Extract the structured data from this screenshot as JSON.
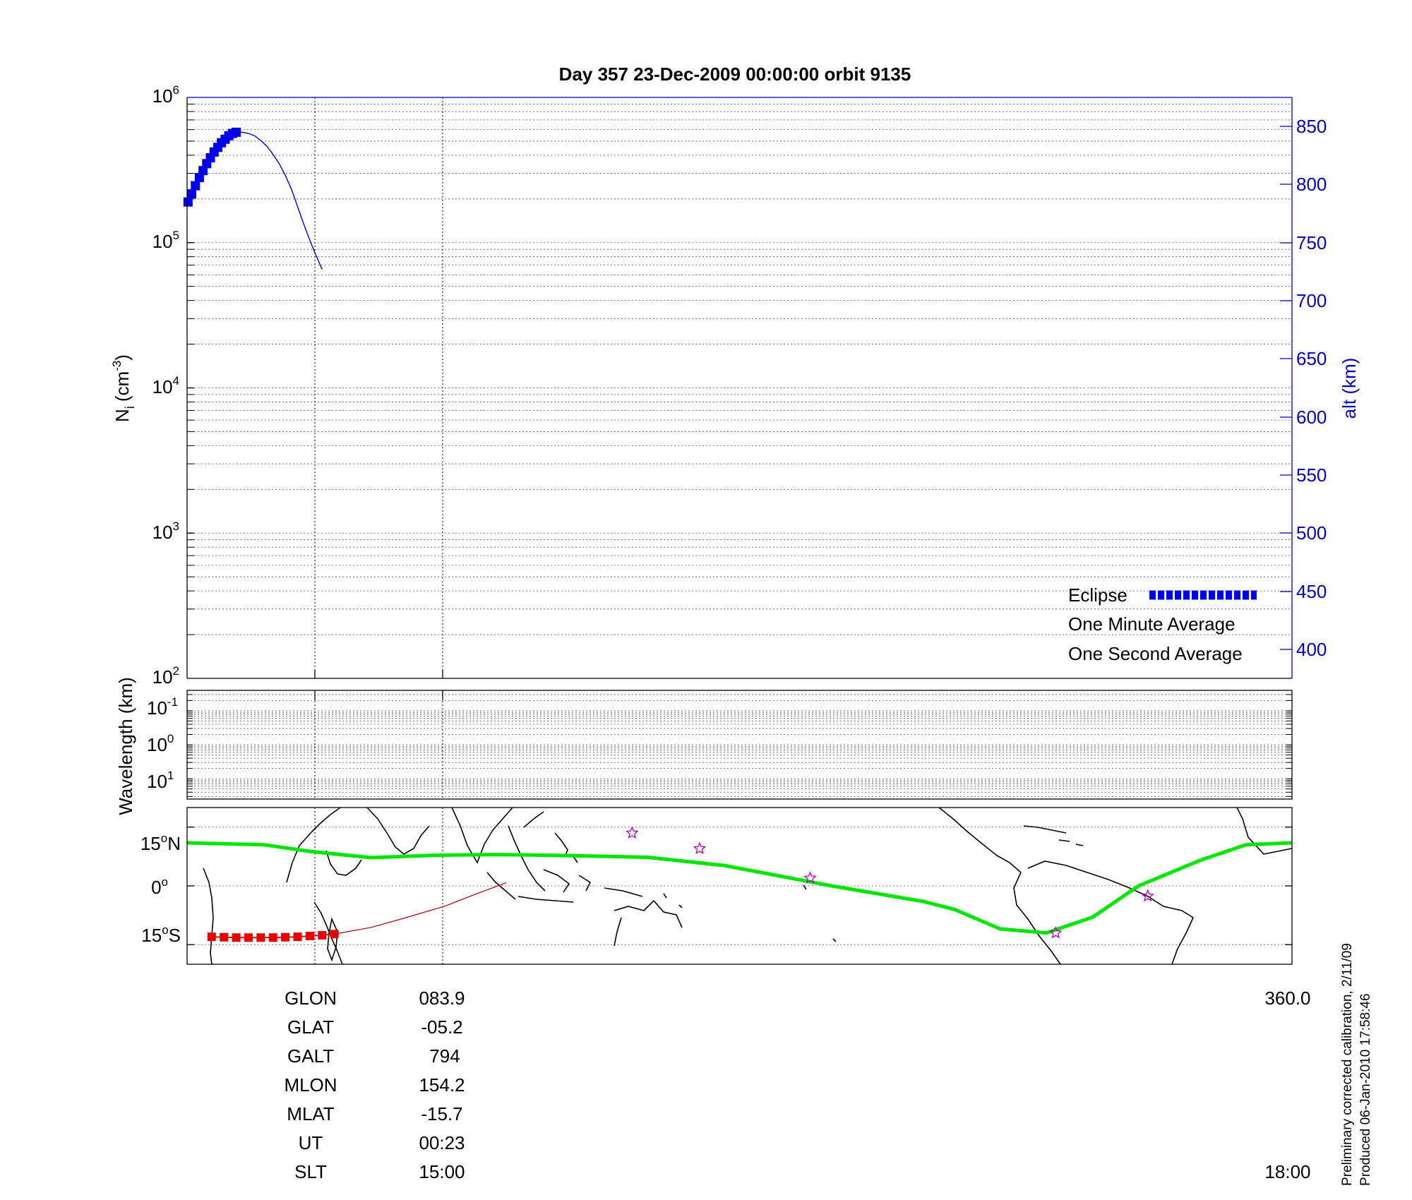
{
  "title": "Day 357  23-Dec-2009 00:00:00   orbit 9135",
  "chart_data": [
    {
      "panel": "density",
      "type": "line",
      "ylabel_base": "N",
      "ylabel_sub": "i",
      "ylabel_unit": "(cm",
      "ylabel_exp": "-3",
      "ylabel_close": ")",
      "y_scale": "log",
      "ylim": [
        100,
        1000000
      ],
      "y_ticks": [
        {
          "base": "10",
          "exp": "2",
          "value": 100
        },
        {
          "base": "10",
          "exp": "3",
          "value": 1000
        },
        {
          "base": "10",
          "exp": "4",
          "value": 10000
        },
        {
          "base": "10",
          "exp": "5",
          "value": 100000
        },
        {
          "base": "10",
          "exp": "6",
          "value": 1000000
        }
      ],
      "y2label": "alt (km)",
      "y2lim": [
        375,
        875
      ],
      "y2_ticks": [
        "400",
        "450",
        "500",
        "550",
        "600",
        "650",
        "700",
        "750",
        "800",
        "850"
      ],
      "grid": true,
      "legend_position": "bottom-right",
      "legend": [
        {
          "label": "Eclipse",
          "color": "#0000e6"
        },
        {
          "label": "One Minute Average",
          "color": "#000000"
        },
        {
          "label": "One Second Average",
          "color": "#00e600"
        }
      ],
      "series": [
        {
          "name": "Eclipse",
          "color": "#0000e6",
          "axis": "alt",
          "marker": "square",
          "x": [
            0.3,
            1.5,
            2.7,
            4.0,
            5.2,
            6.4,
            7.6,
            8.8,
            10.0,
            11.2,
            12.4,
            13.6,
            14.8,
            16.0
          ],
          "y": [
            785,
            792,
            799,
            806,
            812,
            818,
            823,
            828,
            832,
            836,
            839,
            842,
            844,
            845
          ]
        },
        {
          "name": "alt",
          "color": "#0000c8",
          "axis": "alt",
          "marker": "none",
          "x": [
            16.0,
            18.0,
            20.0,
            22.0,
            24.0,
            26.0,
            28.0,
            30.0,
            32.0,
            34.0,
            36.0,
            38.0,
            40.0,
            42.0,
            44.0
          ],
          "y": [
            845,
            845,
            844,
            842,
            838,
            833,
            826,
            818,
            808,
            796,
            781,
            766,
            752,
            739,
            727
          ]
        }
      ]
    },
    {
      "panel": "wavelength",
      "type": "heatmap",
      "ylabel": "Wavelength (km)",
      "y_scale": "log",
      "y_ticks": [
        {
          "base": "10",
          "exp": "-1"
        },
        {
          "base": "10",
          "exp": "0"
        },
        {
          "base": "10",
          "exp": "1"
        }
      ],
      "grid": true
    },
    {
      "panel": "map",
      "type": "line",
      "ylim": [
        -20,
        20
      ],
      "y_ticks": [
        {
          "value": 15,
          "text": "15",
          "deg": "o",
          "hemi": "N"
        },
        {
          "value": 0,
          "text": "0",
          "deg": "o",
          "hemi": ""
        },
        {
          "value": -15,
          "text": "15",
          "deg": "o",
          "hemi": "S"
        }
      ],
      "series": [
        {
          "name": "magnetic equator",
          "color": "#00e600",
          "x": [
            0,
            25,
            40,
            60,
            80,
            100,
            120,
            150,
            175,
            210,
            240,
            250,
            265,
            280,
            295,
            310,
            330,
            345,
            360
          ],
          "y": [
            11,
            10.5,
            8.8,
            7.2,
            7.8,
            8.0,
            7.8,
            7.3,
            5.2,
            0,
            -4,
            -6,
            -11,
            -12,
            -8,
            0,
            6.5,
            10.5,
            11
          ]
        },
        {
          "name": "eclipse track",
          "color": "#e60000",
          "marker": "square",
          "x": [
            8,
            12,
            16,
            20,
            24,
            28,
            32,
            36,
            40,
            44,
            48
          ],
          "y": [
            -13.0,
            -13.1,
            -13.2,
            -13.2,
            -13.2,
            -13.2,
            -13.1,
            -13.0,
            -12.8,
            -12.6,
            -12.3
          ]
        },
        {
          "name": "track",
          "color": "#b40000",
          "x": [
            48,
            60,
            70,
            83.9,
            94,
            104
          ],
          "y": [
            -12.3,
            -10.6,
            -8.4,
            -5.2,
            -2.1,
            0.8
          ]
        }
      ],
      "stars": [
        {
          "lon": 145,
          "lat": 13.5
        },
        {
          "lon": 167,
          "lat": 9.5
        },
        {
          "lon": 203,
          "lat": 2.0
        },
        {
          "lon": 313,
          "lat": -2.6
        },
        {
          "lon": 283,
          "lat": -12.0
        }
      ]
    }
  ],
  "axis_bottom": {
    "lon_end": "360.0",
    "slt_end": "18:00"
  },
  "info": [
    {
      "label": "GLON",
      "value": "083.9"
    },
    {
      "label": "GLAT",
      "value": "-05.2"
    },
    {
      "label": "GALT",
      "value": "794"
    },
    {
      "label": "MLON",
      "value": "154.2"
    },
    {
      "label": "MLAT",
      "value": "-15.7"
    },
    {
      "label": "UT",
      "value": "00:23"
    },
    {
      "label": "SLT",
      "value": "15:00"
    }
  ],
  "notes": {
    "line1": "Preliminary corrected calibration, 2/11/09",
    "line2": "Produced 06-Jan-2010 17:58:46"
  }
}
